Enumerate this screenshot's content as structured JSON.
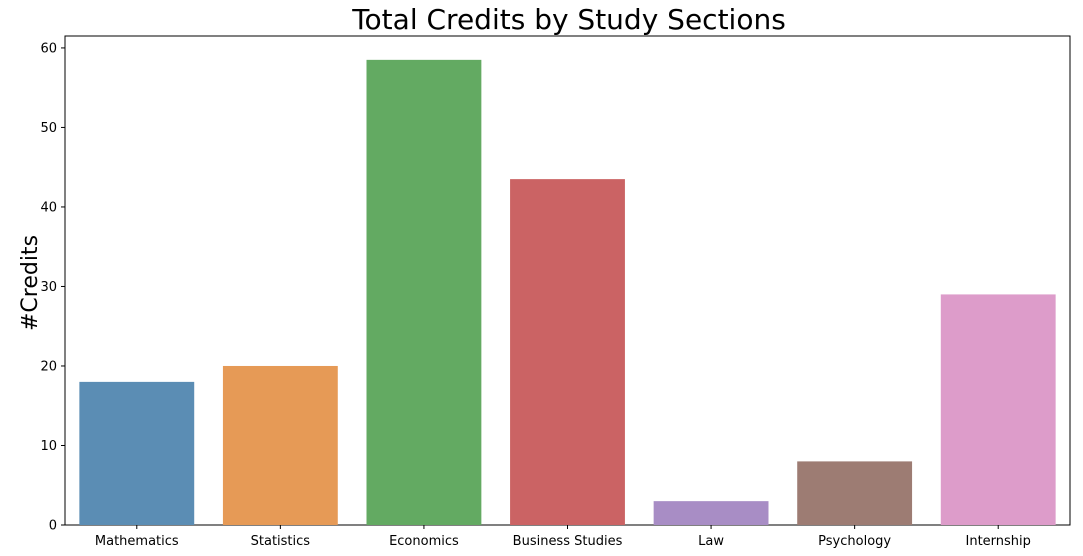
{
  "chart_data": {
    "type": "bar",
    "title": "Total Credits by Study Sections",
    "xlabel": "",
    "ylabel": "#Credits",
    "categories": [
      "Mathematics",
      "Statistics",
      "Economics",
      "Business Studies",
      "Law",
      "Psychology",
      "Internship"
    ],
    "values": [
      18,
      20,
      58.5,
      43.5,
      3,
      8,
      29
    ],
    "colors": [
      "#5b8db4",
      "#e69a56",
      "#63aa62",
      "#cb6364",
      "#a88dc5",
      "#9d7c73",
      "#dd9cca"
    ],
    "ylim": [
      0,
      61.5
    ],
    "yticks": [
      0,
      10,
      20,
      30,
      40,
      50,
      60
    ],
    "grid": false
  }
}
